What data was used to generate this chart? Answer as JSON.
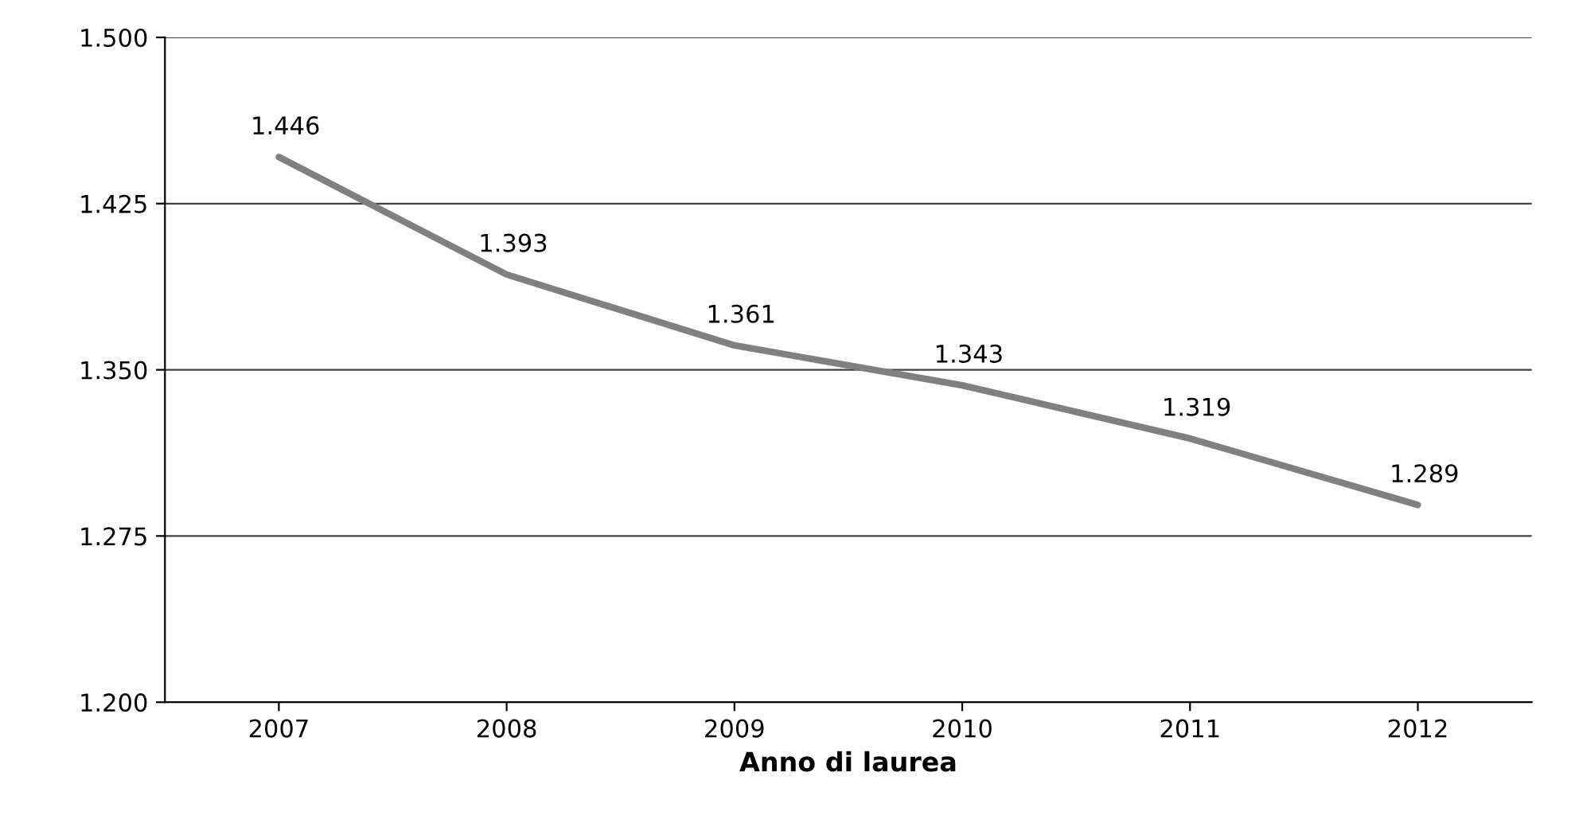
{
  "chart_data": {
    "type": "line",
    "xlabel": "Anno di laurea",
    "categories": [
      "2007",
      "2008",
      "2009",
      "2010",
      "2011",
      "2012"
    ],
    "series": [
      {
        "color": "#808080",
        "values": [
          1446,
          1393,
          1361,
          1343,
          1319,
          1289
        ],
        "value_labels": [
          "1.446",
          "1.393",
          "1.361",
          "1.343",
          "1.319",
          "1.289"
        ]
      }
    ],
    "ylim": [
      1200,
      1500
    ],
    "yticks": [
      {
        "value": 1200,
        "label": "1.200"
      },
      {
        "value": 1275,
        "label": "1.275"
      },
      {
        "value": 1350,
        "label": "1.350"
      },
      {
        "value": 1425,
        "label": "1.425"
      },
      {
        "value": 1500,
        "label": "1.500"
      }
    ],
    "grid": "y",
    "marker": "none",
    "line_style": "solid",
    "legend": false
  }
}
